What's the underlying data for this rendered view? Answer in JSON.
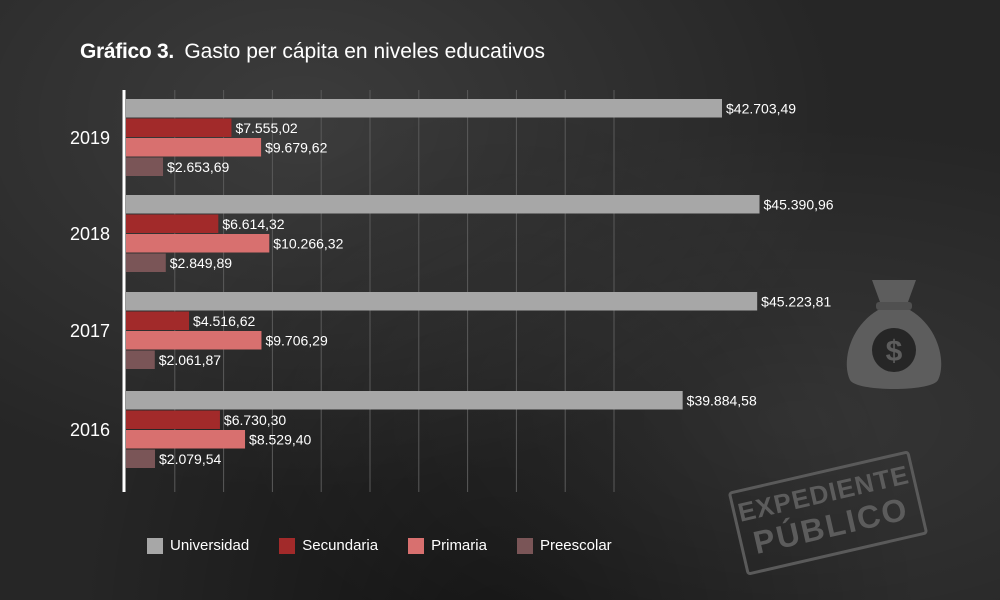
{
  "title": {
    "prefix": "Gráfico 3.",
    "text": "Gasto per cápita en niveles educativos"
  },
  "colors": {
    "universidad": "#a7a7a7",
    "secundaria": "#a22a2a",
    "primaria": "#d8706f",
    "preescolar": "#7a5557",
    "axis": "#ffffff",
    "grid": "#5a5a5a",
    "text": "#ffffff"
  },
  "chart_data": {
    "type": "bar",
    "orientation": "horizontal",
    "categories": [
      "2019",
      "2018",
      "2017",
      "2016"
    ],
    "series": [
      {
        "name": "Universidad",
        "values": [
          42703.49,
          45390.96,
          45223.81,
          39884.58
        ],
        "labels": [
          "$42.703,49",
          "$45.390,96",
          "$45.223,81",
          "$39.884,58"
        ]
      },
      {
        "name": "Secundaria",
        "values": [
          7555.02,
          6614.32,
          4516.62,
          6730.3
        ],
        "labels": [
          "$7.555,02",
          "$6.614,32",
          "$4.516,62",
          "$6.730,30"
        ]
      },
      {
        "name": "Primaria",
        "values": [
          9679.62,
          10266.32,
          9706.29,
          8529.4
        ],
        "labels": [
          "$9.679,62",
          "$10.266,32",
          "$9.706,29",
          "$8.529,40"
        ]
      },
      {
        "name": "Preescolar",
        "values": [
          2653.69,
          2849.89,
          2061.87,
          2079.54
        ],
        "labels": [
          "$2.653,69",
          "$2.849,89",
          "$2.061,87",
          "$2.079,54"
        ]
      }
    ],
    "xlim": [
      0,
      50000
    ],
    "grid": true,
    "legend_position": "bottom"
  },
  "legend": [
    {
      "label": "Universidad",
      "color": "#a7a7a7"
    },
    {
      "label": "Secundaria",
      "color": "#a22a2a"
    },
    {
      "label": "Primaria",
      "color": "#d8706f"
    },
    {
      "label": "Preescolar",
      "color": "#7a5557"
    }
  ],
  "watermark": {
    "line1": "EXPEDIENTE",
    "line2": "PÚBLICO"
  },
  "icons": {
    "money_bag": "money-bag-icon",
    "dollar": "$"
  }
}
